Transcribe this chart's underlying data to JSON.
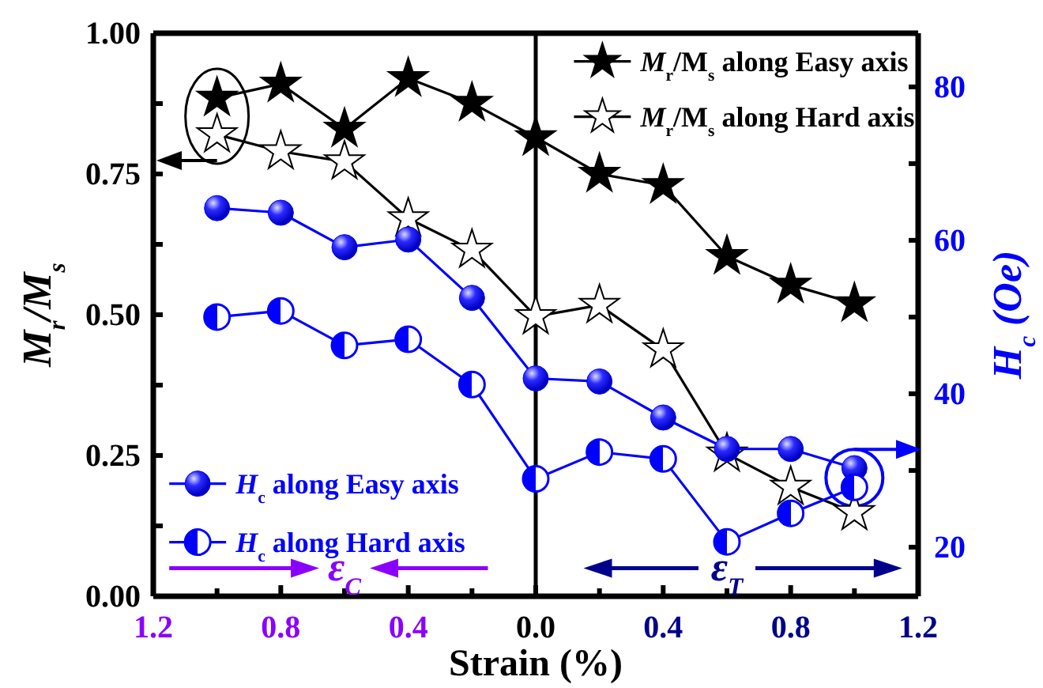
{
  "chart_data": {
    "type": "line",
    "xlabel": "Strain (%)",
    "ylabel": "M$_{r}$/M$_{s}$",
    "y2label": "H$_{c}$ (Oe)",
    "x": [
      -1.0,
      -0.8,
      -0.6,
      -0.4,
      -0.2,
      0.0,
      0.2,
      0.4,
      0.6,
      0.8,
      1.0
    ],
    "xlim": [
      -1.2,
      1.2
    ],
    "xticks": [
      {
        "value": -1.2,
        "label": "1.2"
      },
      {
        "value": -1.0,
        "label": null
      },
      {
        "value": -0.8,
        "label": "0.8"
      },
      {
        "value": -0.6,
        "label": null
      },
      {
        "value": -0.4,
        "label": "0.4"
      },
      {
        "value": -0.2,
        "label": null
      },
      {
        "value": 0,
        "label": "0.0"
      },
      {
        "value": 0.2,
        "label": null
      },
      {
        "value": 0.4,
        "label": "0.4"
      },
      {
        "value": 0.6,
        "label": null
      },
      {
        "value": 0.8,
        "label": "0.8"
      },
      {
        "value": 1.0,
        "label": null
      },
      {
        "value": 1.2,
        "label": "1.2"
      }
    ],
    "ylim": [
      0,
      1.0
    ],
    "yticks": [
      {
        "value": 0,
        "label": "0.00"
      },
      {
        "value": 0.125,
        "label": null
      },
      {
        "value": 0.25,
        "label": "0.25"
      },
      {
        "value": 0.375,
        "label": null
      },
      {
        "value": 0.5,
        "label": "0.50"
      },
      {
        "value": 0.625,
        "label": null
      },
      {
        "value": 0.75,
        "label": "0.75"
      },
      {
        "value": 0.875,
        "label": null
      },
      {
        "value": 1.0,
        "label": "1.00"
      }
    ],
    "y2lim": [
      13.6,
      87.0
    ],
    "y2ticks": [
      20,
      {
        "value": 30,
        "label": null
      },
      40,
      {
        "value": 50,
        "label": null
      },
      60,
      {
        "value": 70,
        "label": null
      },
      80
    ],
    "ref_lines": [
      {
        "axis": "x",
        "value": 0,
        "color": "#000000",
        "line_style": "solid"
      }
    ],
    "annotations": [
      "ε$_{C}$",
      "ε$_{T}$"
    ],
    "legend": "top right",
    "grid": false,
    "line_style": "solid",
    "series": [
      {
        "name": "M$_{r}$/M$_{s}$ along Easy axis",
        "color": "#000000",
        "marker": "star",
        "values": [
          0.885,
          0.91,
          0.83,
          0.92,
          0.876,
          0.815,
          0.75,
          0.73,
          0.604,
          0.553,
          0.52
        ]
      },
      {
        "name": "M$_{r}$/M$_{s}$ along Hard axis",
        "color": "#000000",
        "marker": "star",
        "values": [
          0.82,
          0.79,
          0.772,
          0.671,
          0.615,
          0.497,
          0.517,
          0.438,
          0.253,
          0.194,
          0.149
        ]
      },
      {
        "name": "H$_{c}$ along Easy axis",
        "color": "#0000ff",
        "marker": "circle",
        "axis": "y2",
        "values": [
          64.2,
          63.6,
          59.1,
          60.1,
          52.5,
          42.0,
          41.6,
          36.9,
          32.8,
          32.8,
          30.3
        ]
      },
      {
        "name": "H$_{c}$ along Hard axis",
        "color": "#0000ff",
        "marker": "circle",
        "axis": "y2",
        "values": [
          50.0,
          50.8,
          46.3,
          47.1,
          41.2,
          28.9,
          32.4,
          31.5,
          20.7,
          24.4,
          27.8
        ]
      }
    ]
  }
}
